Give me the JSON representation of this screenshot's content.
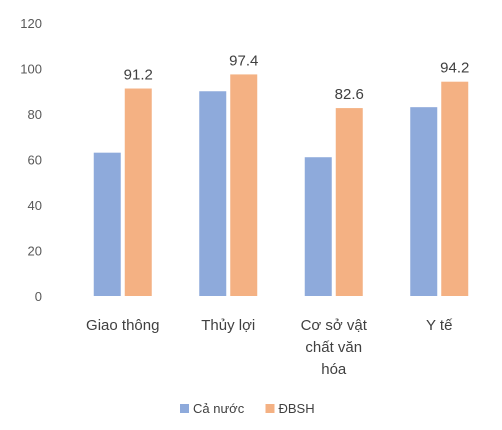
{
  "chart_data": {
    "type": "bar",
    "categories": [
      "Giao thông",
      "Thủy lợi",
      "Cơ sở vật chất văn hóa",
      "Y tế"
    ],
    "category_lines": [
      [
        "Giao thông"
      ],
      [
        "Thủy lợi"
      ],
      [
        "Cơ sở vật",
        "chất văn",
        "hóa"
      ],
      [
        "Y tế"
      ]
    ],
    "series": [
      {
        "name": "Cả nước",
        "color": "#8EAADB",
        "values": [
          63,
          90,
          61,
          83
        ],
        "labels": [
          "",
          "",
          "",
          ""
        ]
      },
      {
        "name": "ĐBSH",
        "color": "#F4B183",
        "values": [
          91.2,
          97.4,
          82.6,
          94.2
        ],
        "labels": [
          "91.2",
          "97.4",
          "82.6",
          "94.2"
        ]
      }
    ],
    "yticks": [
      "0",
      "20",
      "40",
      "60",
      "80",
      "100",
      "120"
    ],
    "ylim": [
      0,
      120
    ],
    "grid": false,
    "legend": "bottom"
  }
}
